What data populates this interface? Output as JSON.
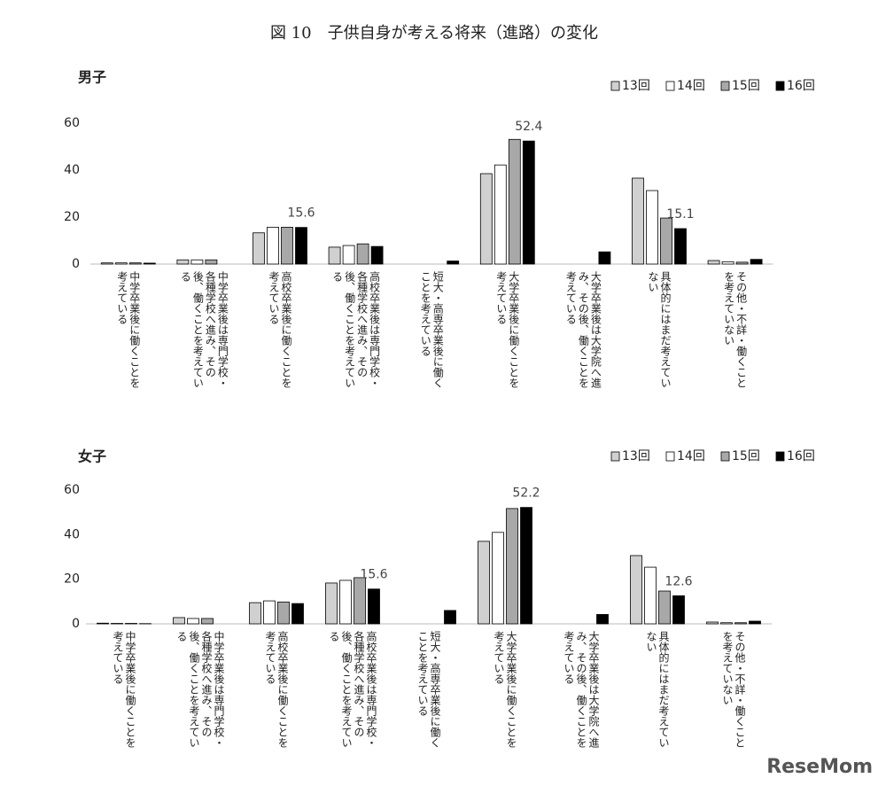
{
  "title": "図 10　子供自身が考える将来（進路）の変化",
  "watermark": "ReseMom",
  "chart_data": [
    {
      "type": "bar",
      "title": "男子",
      "categories": [
        "中学卒業後に働くことを考えている",
        "中学卒業後は専門学校・各種学校へ進み、その後、働くことを考えている",
        "高校卒業後に働くことを考えている",
        "高校卒業後は専門学校・各種学校へ進み、その後、働くことを考えている",
        "短大・高専卒業後に働くことを考えている",
        "大学卒業後に働くことを考えている",
        "大学卒業後は大学院へ進み、その後、働くことを考えている",
        "具体的にはまだ考えていない",
        "その他・不詳・働くことを考えていない"
      ],
      "series": [
        {
          "name": "13回",
          "color": "#d0d0d0",
          "values": [
            0.5,
            1.8,
            13.3,
            7.2,
            null,
            38.5,
            null,
            36.6,
            1.5
          ]
        },
        {
          "name": "14回",
          "color": "#ffffff",
          "values": [
            0.5,
            1.8,
            15.7,
            7.9,
            null,
            42.2,
            null,
            31.3,
            1.0
          ]
        },
        {
          "name": "15回",
          "color": "#a8a8a8",
          "values": [
            0.5,
            1.8,
            15.7,
            8.6,
            null,
            53.1,
            null,
            19.6,
            0.8
          ]
        },
        {
          "name": "16回",
          "color": "#000000",
          "values": [
            0.4,
            null,
            15.6,
            7.5,
            1.3,
            52.4,
            5.2,
            15.1,
            2.0
          ],
          "value_labels": [
            null,
            null,
            "15.6",
            null,
            null,
            "52.4",
            null,
            "15.1",
            null
          ]
        }
      ],
      "ylim": [
        0,
        60
      ],
      "yticks": [
        0,
        20,
        40,
        60
      ],
      "grid": false,
      "legend": "top-right"
    },
    {
      "type": "bar",
      "title": "女子",
      "categories": [
        "中学卒業後に働くことを考えている",
        "中学卒業後は専門学校・各種学校へ進み、その後、働くことを考えている",
        "高校卒業後に働くことを考えている",
        "高校卒業後は専門学校・各種学校へ進み、その後、働くことを考えている",
        "短大・高専卒業後に働くことを考えている",
        "大学卒業後に働くことを考えている",
        "大学卒業後は大学院へ進み、その後、働くことを考えている",
        "具体的にはまだ考えていない",
        "その他・不詳・働くことを考えていない"
      ],
      "series": [
        {
          "name": "13回",
          "color": "#d0d0d0",
          "values": [
            0.3,
            2.8,
            9.5,
            18.3,
            null,
            37.0,
            null,
            30.6,
            0.8
          ]
        },
        {
          "name": "14回",
          "color": "#ffffff",
          "values": [
            0.2,
            2.4,
            10.3,
            19.5,
            null,
            41.0,
            null,
            25.4,
            0.5
          ]
        },
        {
          "name": "15回",
          "color": "#a8a8a8",
          "values": [
            0.2,
            2.4,
            9.8,
            20.7,
            null,
            51.7,
            null,
            14.7,
            0.5
          ]
        },
        {
          "name": "16回",
          "color": "#000000",
          "values": [
            0.1,
            null,
            9.1,
            15.6,
            6.0,
            52.2,
            4.2,
            12.6,
            1.2
          ],
          "value_labels": [
            null,
            null,
            null,
            "15.6",
            null,
            "52.2",
            null,
            "12.6",
            null
          ]
        }
      ],
      "ylim": [
        0,
        60
      ],
      "yticks": [
        0,
        20,
        40,
        60
      ],
      "grid": false,
      "legend": "top-right"
    }
  ]
}
